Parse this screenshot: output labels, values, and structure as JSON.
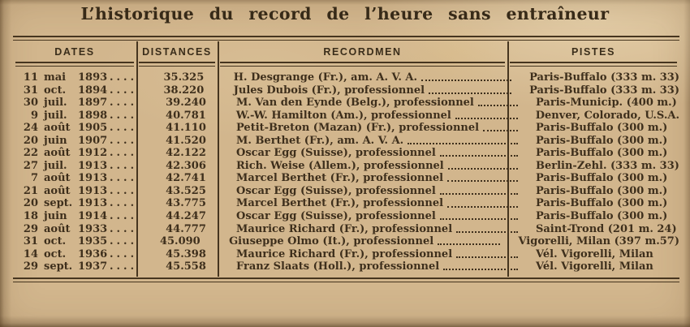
{
  "title": "L’historique du record de l’heure sans entraîneur",
  "table": {
    "headers": {
      "dates": "DATES",
      "distances": "DISTANCES",
      "recordmen": "RECORDMEN",
      "pistes": "PISTES"
    },
    "date_leader": "....",
    "rows": [
      {
        "day": "11",
        "month": "mai",
        "year": "1893",
        "distance": "35.325",
        "recordman": "H. Desgrange (Fr.), am. A. V. A.",
        "piste": "Paris-Buffalo (333 m. 33)"
      },
      {
        "day": "31",
        "month": "oct.",
        "year": "1894",
        "distance": "38.220",
        "recordman": "Jules Dubois (Fr.), professionnel",
        "piste": "Paris-Buffalo (333 m. 33)"
      },
      {
        "day": "30",
        "month": "juil.",
        "year": "1897",
        "distance": "39.240",
        "recordman": "M. Van den Eynde (Belg.), professionnel",
        "piste": "Paris-Municip. (400 m.)"
      },
      {
        "day": "9",
        "month": "juil.",
        "year": "1898",
        "distance": "40.781",
        "recordman": "W.-W. Hamilton (Am.), professionnel",
        "piste": "Denver, Colorado, U.S.A."
      },
      {
        "day": "24",
        "month": "août",
        "year": "1905",
        "distance": "41.110",
        "recordman": "Petit-Breton (Mazan) (Fr.), professionnel",
        "piste": "Paris-Buffalo (300 m.)"
      },
      {
        "day": "20",
        "month": "juin",
        "year": "1907",
        "distance": "41.520",
        "recordman": "M. Berthet (Fr.), am. A. V. A.",
        "piste": "Paris-Buffalo (300 m.)"
      },
      {
        "day": "22",
        "month": "août",
        "year": "1912",
        "distance": "42.122",
        "recordman": "Oscar Egg (Suisse), professionnel",
        "piste": "Paris-Buffalo (300 m.)"
      },
      {
        "day": "27",
        "month": "juil.",
        "year": "1913",
        "distance": "42.306",
        "recordman": "Rich. Weise (Allem.), professionnel",
        "piste": "Berlin-Zehl. (333 m. 33)"
      },
      {
        "day": "7",
        "month": "août",
        "year": "1913",
        "distance": "42.741",
        "recordman": "Marcel Berthet (Fr.), professionnel",
        "piste": "Paris-Buffalo (300 m.)"
      },
      {
        "day": "21",
        "month": "août",
        "year": "1913",
        "distance": "43.525",
        "recordman": "Oscar Egg (Suisse), professionnel",
        "piste": "Paris-Buffalo (300 m.)"
      },
      {
        "day": "20",
        "month": "sept.",
        "year": "1913",
        "distance": "43.775",
        "recordman": "Marcel Berthet (Fr.), professionnel",
        "piste": "Paris-Buffalo (300 m.)"
      },
      {
        "day": "18",
        "month": "juin",
        "year": "1914",
        "distance": "44.247",
        "recordman": "Oscar Egg (Suisse), professionnel",
        "piste": "Paris-Buffalo (300 m.)"
      },
      {
        "day": "29",
        "month": "août",
        "year": "1933",
        "distance": "44.777",
        "recordman": "Maurice Richard (Fr.), professionnel",
        "piste": "Saint-Trond (201 m. 24)"
      },
      {
        "day": "31",
        "month": "oct.",
        "year": "1935",
        "distance": "45.090",
        "recordman": "Giuseppe Olmo (It.), professionnel",
        "piste": "Vigorelli, Milan (397 m.57)"
      },
      {
        "day": "14",
        "month": "oct.",
        "year": "1936",
        "distance": "45.398",
        "recordman": "Maurice Richard (Fr.), professionnel",
        "piste": "Vél. Vigorelli, Milan"
      },
      {
        "day": "29",
        "month": "sept.",
        "year": "1937",
        "distance": "45.558",
        "recordman": "Franz Slaats (Holl.), professionnel",
        "piste": "Vél. Vigorelli, Milan"
      }
    ]
  },
  "colors": {
    "paper": "#d2b68d",
    "ink": "#3e2f1c",
    "rule": "#46351f"
  }
}
